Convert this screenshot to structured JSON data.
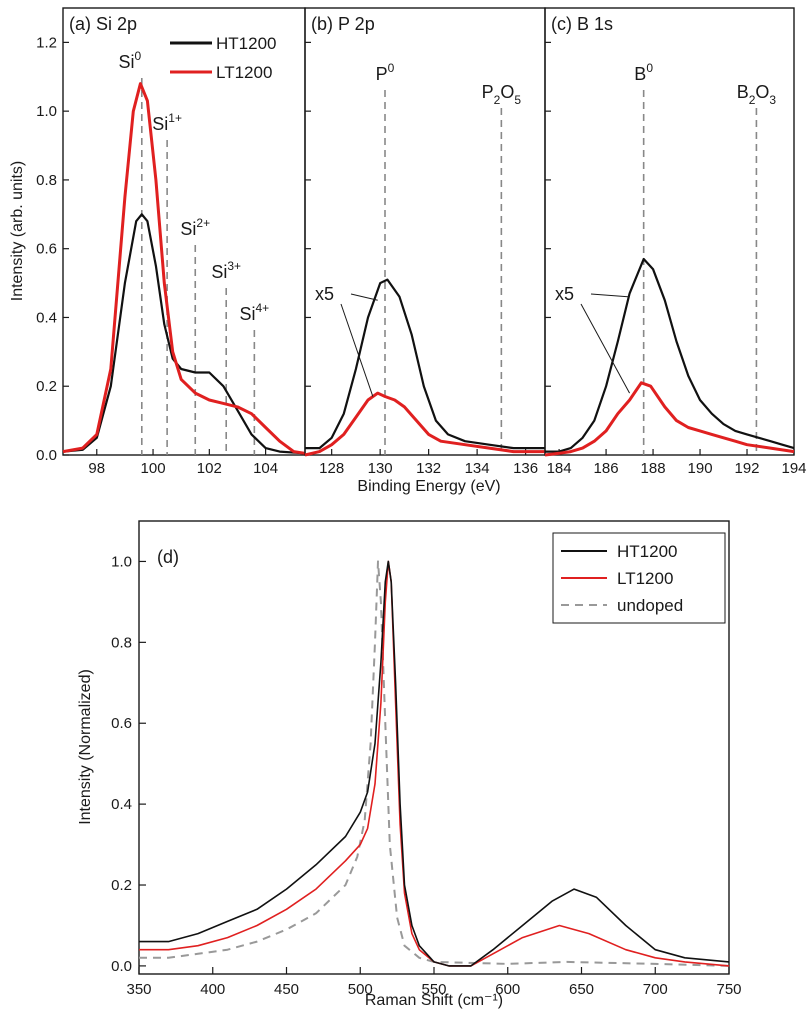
{
  "chart_data": [
    {
      "type": "line",
      "panel": "a",
      "title": "(a) Si 2p",
      "xlabel": "Binding Energy (eV)",
      "ylabel": "Intensity (arb. units)",
      "xlim": [
        96.8,
        105.4
      ],
      "ylim": [
        0,
        1.3
      ],
      "x_ticks": [
        "98",
        "100",
        "102",
        "104"
      ],
      "x_tick_values": [
        98,
        100,
        102,
        104
      ],
      "y_ticks": [
        "0.0",
        "0.2",
        "0.4",
        "0.6",
        "0.8",
        "1.0",
        "1.2"
      ],
      "y_tick_values": [
        0,
        0.2,
        0.4,
        0.6,
        0.8,
        1.0,
        1.2
      ],
      "series": [
        {
          "name": "HT1200",
          "color": "#111111",
          "points": [
            [
              96.8,
              0.01
            ],
            [
              97.5,
              0.015
            ],
            [
              98.0,
              0.05
            ],
            [
              98.5,
              0.2
            ],
            [
              99.0,
              0.5
            ],
            [
              99.4,
              0.68
            ],
            [
              99.6,
              0.7
            ],
            [
              99.8,
              0.68
            ],
            [
              100.1,
              0.55
            ],
            [
              100.4,
              0.38
            ],
            [
              100.7,
              0.28
            ],
            [
              101.0,
              0.25
            ],
            [
              101.5,
              0.24
            ],
            [
              102.0,
              0.24
            ],
            [
              102.5,
              0.2
            ],
            [
              103.0,
              0.13
            ],
            [
              103.5,
              0.06
            ],
            [
              104.0,
              0.02
            ],
            [
              104.5,
              0.01
            ],
            [
              105.4,
              0.005
            ]
          ]
        },
        {
          "name": "LT1200",
          "color": "#e02020",
          "points": [
            [
              96.8,
              0.01
            ],
            [
              97.5,
              0.02
            ],
            [
              98.0,
              0.06
            ],
            [
              98.5,
              0.25
            ],
            [
              99.0,
              0.75
            ],
            [
              99.3,
              1.0
            ],
            [
              99.55,
              1.08
            ],
            [
              99.8,
              1.03
            ],
            [
              100.1,
              0.8
            ],
            [
              100.4,
              0.5
            ],
            [
              100.7,
              0.3
            ],
            [
              101.0,
              0.22
            ],
            [
              101.5,
              0.18
            ],
            [
              102.0,
              0.16
            ],
            [
              102.5,
              0.15
            ],
            [
              103.0,
              0.14
            ],
            [
              103.5,
              0.12
            ],
            [
              104.0,
              0.08
            ],
            [
              104.5,
              0.04
            ],
            [
              105.0,
              0.01
            ],
            [
              105.4,
              0.005
            ]
          ]
        }
      ],
      "reference_lines": [
        {
          "label": "Si",
          "sup": "0",
          "x": 99.6
        },
        {
          "label": "Si",
          "sup": "1+",
          "x": 100.5
        },
        {
          "label": "Si",
          "sup": "2+",
          "x": 101.5
        },
        {
          "label": "Si",
          "sup": "3+",
          "x": 102.6
        },
        {
          "label": "Si",
          "sup": "4+",
          "x": 103.6
        }
      ],
      "legend": {
        "position": "top-right",
        "entries": [
          "HT1200",
          "LT1200"
        ]
      }
    },
    {
      "type": "line",
      "panel": "b",
      "title": "(b) P 2p",
      "xlim": [
        126.9,
        136.8
      ],
      "ylim": [
        0,
        1.3
      ],
      "x_ticks": [
        "128",
        "130",
        "132",
        "134",
        "136"
      ],
      "x_tick_values": [
        128,
        130,
        132,
        134,
        136
      ],
      "multiplier_label": "x5",
      "series": [
        {
          "name": "HT1200",
          "color": "#111111",
          "points": [
            [
              126.9,
              0.02
            ],
            [
              127.5,
              0.02
            ],
            [
              128.0,
              0.05
            ],
            [
              128.5,
              0.12
            ],
            [
              129.0,
              0.25
            ],
            [
              129.5,
              0.4
            ],
            [
              130.0,
              0.5
            ],
            [
              130.3,
              0.51
            ],
            [
              130.8,
              0.46
            ],
            [
              131.3,
              0.35
            ],
            [
              131.8,
              0.2
            ],
            [
              132.3,
              0.1
            ],
            [
              132.8,
              0.06
            ],
            [
              133.5,
              0.04
            ],
            [
              134.5,
              0.03
            ],
            [
              135.5,
              0.02
            ],
            [
              136.8,
              0.02
            ]
          ]
        },
        {
          "name": "LT1200",
          "color": "#e02020",
          "points": [
            [
              126.9,
              0.0
            ],
            [
              127.5,
              0.01
            ],
            [
              128.0,
              0.03
            ],
            [
              128.5,
              0.06
            ],
            [
              129.0,
              0.11
            ],
            [
              129.5,
              0.16
            ],
            [
              129.9,
              0.18
            ],
            [
              130.2,
              0.17
            ],
            [
              130.6,
              0.16
            ],
            [
              131.0,
              0.14
            ],
            [
              131.5,
              0.1
            ],
            [
              132.0,
              0.06
            ],
            [
              132.5,
              0.04
            ],
            [
              133.5,
              0.03
            ],
            [
              134.5,
              0.02
            ],
            [
              135.5,
              0.01
            ],
            [
              136.8,
              0.01
            ]
          ]
        }
      ],
      "reference_lines": [
        {
          "label": "P",
          "sup": "0",
          "x": 130.2
        },
        {
          "label": "P",
          "sub": "2",
          "label2": "O",
          "sub2": "5",
          "x": 135.0
        }
      ]
    },
    {
      "type": "line",
      "panel": "c",
      "title": "(c) B 1s",
      "xlim": [
        183.4,
        194.0
      ],
      "ylim": [
        0,
        1.3
      ],
      "x_ticks": [
        "184",
        "186",
        "188",
        "190",
        "192",
        "194"
      ],
      "x_tick_values": [
        184,
        186,
        188,
        190,
        192,
        194
      ],
      "multiplier_label": "x5",
      "series": [
        {
          "name": "HT1200",
          "color": "#111111",
          "points": [
            [
              183.4,
              0.01
            ],
            [
              184.0,
              0.01
            ],
            [
              184.5,
              0.02
            ],
            [
              185.0,
              0.05
            ],
            [
              185.5,
              0.1
            ],
            [
              186.0,
              0.2
            ],
            [
              186.5,
              0.33
            ],
            [
              187.0,
              0.47
            ],
            [
              187.6,
              0.57
            ],
            [
              188.0,
              0.54
            ],
            [
              188.5,
              0.45
            ],
            [
              189.0,
              0.33
            ],
            [
              189.5,
              0.23
            ],
            [
              190.0,
              0.16
            ],
            [
              190.5,
              0.12
            ],
            [
              191.0,
              0.09
            ],
            [
              191.5,
              0.07
            ],
            [
              192.0,
              0.06
            ],
            [
              192.5,
              0.05
            ],
            [
              193.0,
              0.04
            ],
            [
              193.5,
              0.03
            ],
            [
              194.0,
              0.02
            ]
          ]
        },
        {
          "name": "LT1200",
          "color": "#e02020",
          "points": [
            [
              183.4,
              0.0
            ],
            [
              184.0,
              0.005
            ],
            [
              184.5,
              0.01
            ],
            [
              185.0,
              0.02
            ],
            [
              185.5,
              0.04
            ],
            [
              186.0,
              0.07
            ],
            [
              186.5,
              0.12
            ],
            [
              187.0,
              0.16
            ],
            [
              187.5,
              0.21
            ],
            [
              187.9,
              0.2
            ],
            [
              188.5,
              0.14
            ],
            [
              189.0,
              0.1
            ],
            [
              189.5,
              0.08
            ],
            [
              190.0,
              0.07
            ],
            [
              190.5,
              0.06
            ],
            [
              191.0,
              0.05
            ],
            [
              191.5,
              0.04
            ],
            [
              192.0,
              0.03
            ],
            [
              193.0,
              0.02
            ],
            [
              194.0,
              0.01
            ]
          ]
        }
      ],
      "reference_lines": [
        {
          "label": "B",
          "sup": "0",
          "x": 187.6
        },
        {
          "label": "B",
          "sub": "2",
          "label2": "O",
          "sub2": "3",
          "x": 192.4
        }
      ]
    },
    {
      "type": "line",
      "panel": "d",
      "title": "(d)",
      "xlabel": "Raman Shift (cm⁻¹)",
      "ylabel": "Intensity (Normalized)",
      "xlim": [
        350,
        750
      ],
      "ylim": [
        -0.02,
        1.1
      ],
      "x_ticks": [
        "350",
        "400",
        "450",
        "500",
        "550",
        "600",
        "650",
        "700",
        "750"
      ],
      "x_tick_values": [
        350,
        400,
        450,
        500,
        550,
        600,
        650,
        700,
        750
      ],
      "y_ticks": [
        "0.0",
        "0.2",
        "0.4",
        "0.6",
        "0.8",
        "1.0"
      ],
      "y_tick_values": [
        0,
        0.2,
        0.4,
        0.6,
        0.8,
        1.0
      ],
      "series": [
        {
          "name": "HT1200",
          "color": "#111111",
          "dash": "",
          "points": [
            [
              350,
              0.06
            ],
            [
              370,
              0.06
            ],
            [
              390,
              0.08
            ],
            [
              410,
              0.11
            ],
            [
              430,
              0.14
            ],
            [
              450,
              0.19
            ],
            [
              470,
              0.25
            ],
            [
              490,
              0.32
            ],
            [
              500,
              0.38
            ],
            [
              505,
              0.43
            ],
            [
              510,
              0.55
            ],
            [
              514,
              0.75
            ],
            [
              517,
              0.95
            ],
            [
              519,
              1.0
            ],
            [
              521,
              0.95
            ],
            [
              524,
              0.7
            ],
            [
              527,
              0.4
            ],
            [
              530,
              0.2
            ],
            [
              535,
              0.1
            ],
            [
              540,
              0.05
            ],
            [
              550,
              0.01
            ],
            [
              560,
              0.0
            ],
            [
              575,
              0.0
            ],
            [
              590,
              0.04
            ],
            [
              610,
              0.1
            ],
            [
              630,
              0.16
            ],
            [
              645,
              0.19
            ],
            [
              660,
              0.17
            ],
            [
              680,
              0.1
            ],
            [
              700,
              0.04
            ],
            [
              720,
              0.02
            ],
            [
              750,
              0.01
            ]
          ]
        },
        {
          "name": "LT1200",
          "color": "#e02020",
          "dash": "",
          "points": [
            [
              350,
              0.04
            ],
            [
              370,
              0.04
            ],
            [
              390,
              0.05
            ],
            [
              410,
              0.07
            ],
            [
              430,
              0.1
            ],
            [
              450,
              0.14
            ],
            [
              470,
              0.19
            ],
            [
              490,
              0.26
            ],
            [
              500,
              0.3
            ],
            [
              505,
              0.34
            ],
            [
              510,
              0.45
            ],
            [
              514,
              0.65
            ],
            [
              517,
              0.9
            ],
            [
              519,
              1.0
            ],
            [
              521,
              0.95
            ],
            [
              524,
              0.65
            ],
            [
              527,
              0.35
            ],
            [
              530,
              0.18
            ],
            [
              535,
              0.08
            ],
            [
              540,
              0.04
            ],
            [
              550,
              0.01
            ],
            [
              560,
              0.0
            ],
            [
              575,
              0.0
            ],
            [
              590,
              0.03
            ],
            [
              610,
              0.07
            ],
            [
              635,
              0.1
            ],
            [
              655,
              0.08
            ],
            [
              680,
              0.04
            ],
            [
              700,
              0.02
            ],
            [
              720,
              0.01
            ],
            [
              750,
              0.0
            ]
          ]
        },
        {
          "name": "undoped",
          "color": "#999999",
          "dash": "8 6",
          "points": [
            [
              350,
              0.02
            ],
            [
              370,
              0.02
            ],
            [
              390,
              0.03
            ],
            [
              410,
              0.04
            ],
            [
              430,
              0.06
            ],
            [
              450,
              0.09
            ],
            [
              470,
              0.13
            ],
            [
              490,
              0.2
            ],
            [
              498,
              0.27
            ],
            [
              503,
              0.36
            ],
            [
              507,
              0.55
            ],
            [
              510,
              0.8
            ],
            [
              512,
              1.0
            ],
            [
              514,
              0.9
            ],
            [
              517,
              0.6
            ],
            [
              520,
              0.3
            ],
            [
              525,
              0.12
            ],
            [
              530,
              0.05
            ],
            [
              540,
              0.02
            ],
            [
              550,
              0.01
            ],
            [
              600,
              0.005
            ],
            [
              640,
              0.01
            ],
            [
              700,
              0.005
            ],
            [
              750,
              0.0
            ]
          ]
        }
      ],
      "legend": {
        "position": "top-right",
        "entries": [
          "HT1200",
          "LT1200",
          "undoped"
        ]
      }
    }
  ]
}
